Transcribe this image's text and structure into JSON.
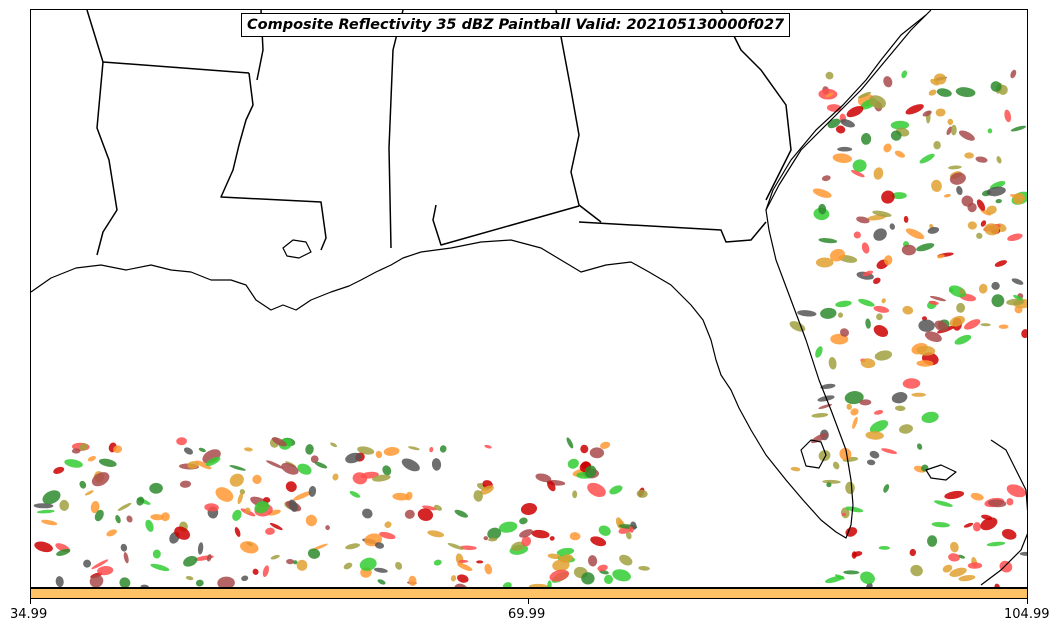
{
  "title": "Composite Reflectivity 35 dBZ Paintball Valid: 202105130000f027",
  "colorbar": {
    "color": "#ffc266",
    "ticks": [
      "34.99",
      "69.99",
      "104.99"
    ]
  },
  "colors": {
    "state_lines": "#000000",
    "land": "#ffffff",
    "paintball_members": [
      "#ff4d4d",
      "#33cc33",
      "#ff9933",
      "#a0a040",
      "#555555",
      "#2e8b2e",
      "#a84a4a",
      "#e0a030",
      "#cc0000"
    ]
  },
  "features": [
    "state-borders",
    "coastline",
    "paintball-reflectivity-blobs"
  ]
}
